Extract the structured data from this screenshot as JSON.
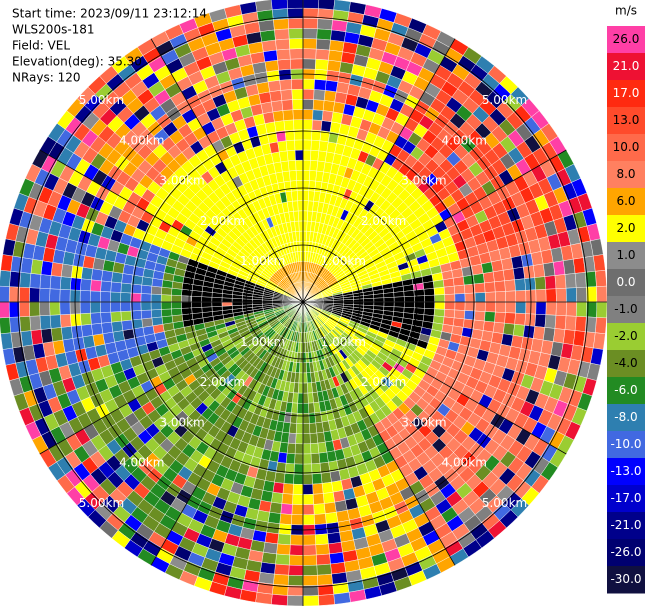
{
  "header": {
    "lines": [
      "Start time: 2023/09/11 23:12:14",
      "WLS200s-181",
      "Field: VEL",
      "Elevation(deg): 35.30",
      "NRays: 120"
    ]
  },
  "colorbar": {
    "unit": "m/s",
    "ticks": [
      {
        "label": "26.0",
        "color": "#ff3fa6"
      },
      {
        "label": "21.0",
        "color": "#ee1133"
      },
      {
        "label": "17.0",
        "color": "#ff2a10"
      },
      {
        "label": "13.0",
        "color": "#ff4b2b"
      },
      {
        "label": "10.0",
        "color": "#ff6a4a"
      },
      {
        "label": "8.0",
        "color": "#ff8060"
      },
      {
        "label": "6.0",
        "color": "#ffa500"
      },
      {
        "label": "2.0",
        "color": "#ffff00"
      },
      {
        "label": "1.0",
        "color": "#8c8c8c"
      },
      {
        "label": "0.0",
        "color": "#6e6e6e"
      },
      {
        "label": "-1.0",
        "color": "#808080"
      },
      {
        "label": "-2.0",
        "color": "#9acd32"
      },
      {
        "label": "-4.0",
        "color": "#6b8e23"
      },
      {
        "label": "-6.0",
        "color": "#228b22"
      },
      {
        "label": "-8.0",
        "color": "#2e7fb0"
      },
      {
        "label": "-10.0",
        "color": "#4169e1"
      },
      {
        "label": "-13.0",
        "color": "#0000ff"
      },
      {
        "label": "-17.0",
        "color": "#0000cd"
      },
      {
        "label": "-21.0",
        "color": "#00008b"
      },
      {
        "label": "-26.0",
        "color": "#000070"
      },
      {
        "label": "-30.0",
        "color": "#101040"
      }
    ]
  },
  "range_rings": {
    "labels": [
      "1.00km",
      "2.00km",
      "3.00km",
      "4.00km",
      "5.00km"
    ]
  }
}
